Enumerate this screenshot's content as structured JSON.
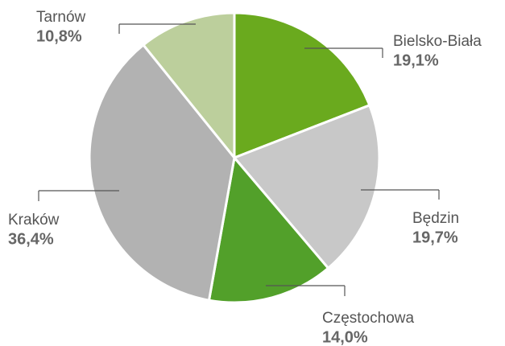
{
  "chart_data": {
    "type": "pie",
    "categories": [
      "Bielsko-Biała",
      "Będzin",
      "Częstochowa",
      "Kraków",
      "Tarnów"
    ],
    "values": [
      19.1,
      19.7,
      14.0,
      36.4,
      10.8
    ],
    "value_labels": [
      "19,1%",
      "19,7%",
      "14,0%",
      "36,4%",
      "10,8%"
    ],
    "colors": [
      "#6aaa1e",
      "#c8c8c8",
      "#52a02a",
      "#b2b2b2",
      "#bccf9c"
    ]
  }
}
